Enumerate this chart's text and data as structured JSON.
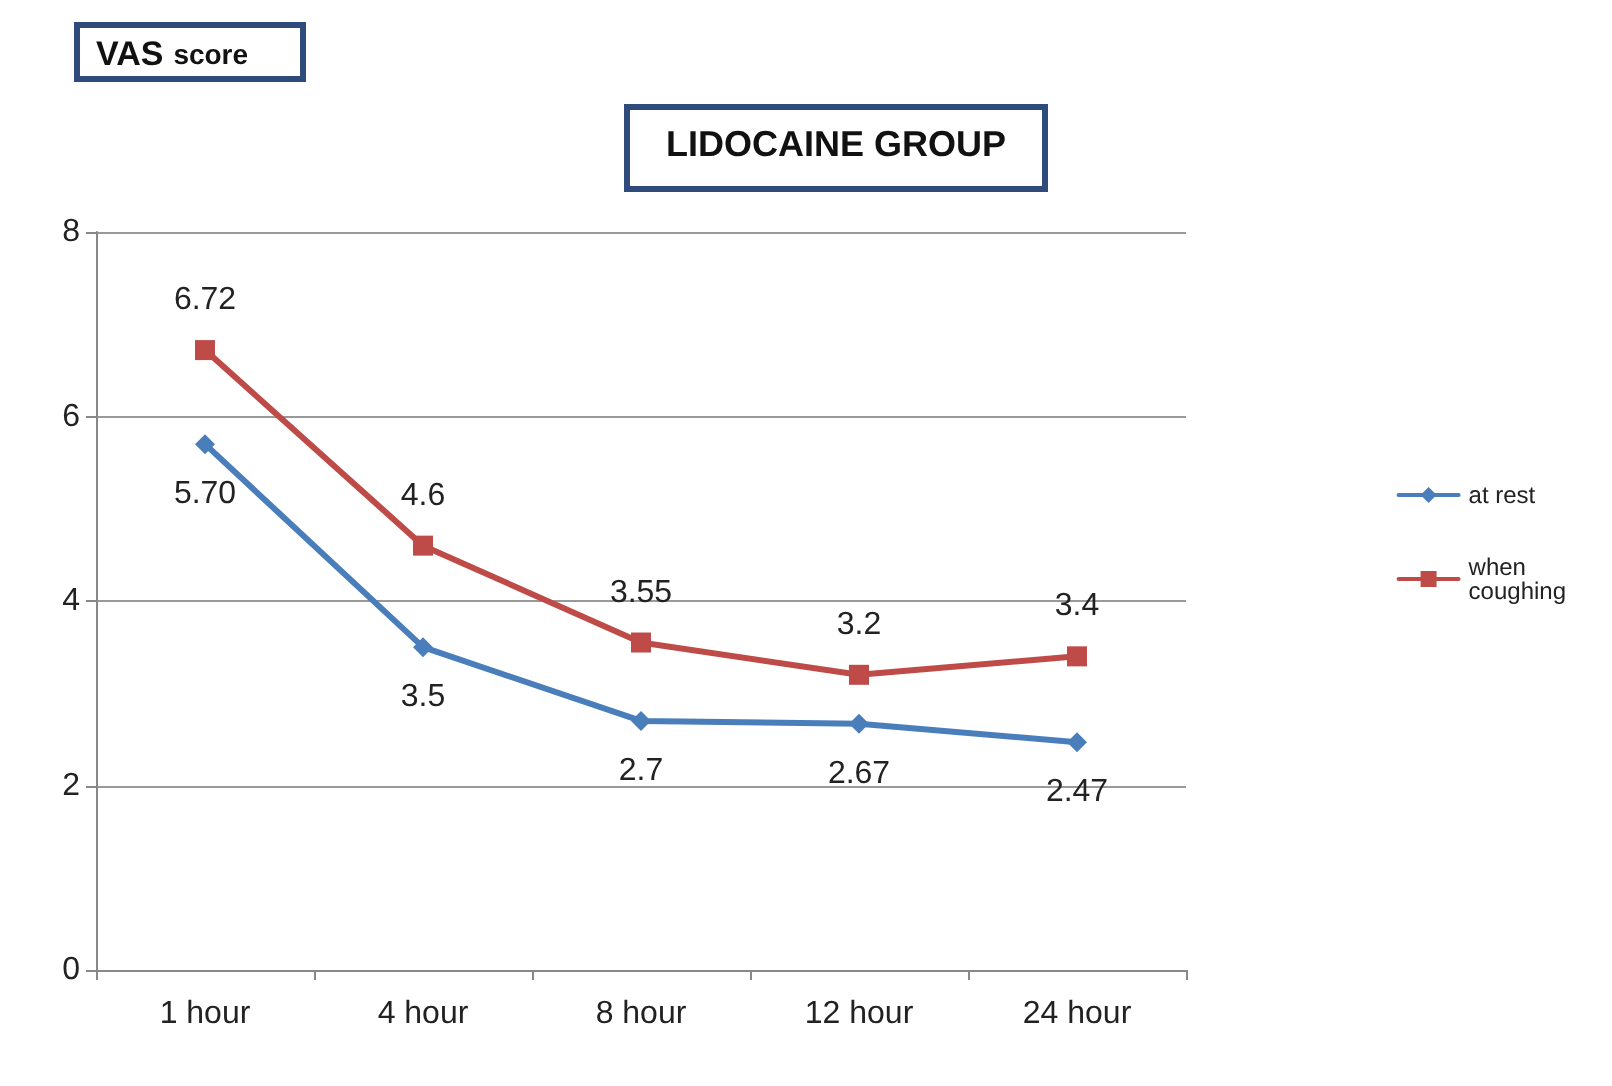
{
  "chart_data": {
    "type": "line",
    "title": "LIDOCAINE GROUP",
    "ylabel": "VAS score",
    "categories": [
      "1 hour",
      "4 hour",
      "8 hour",
      "12 hour",
      "24 hour"
    ],
    "series": [
      {
        "name": "at rest",
        "color": "#4a7ebb",
        "marker": "diamond",
        "values": [
          5.7,
          3.5,
          2.7,
          2.67,
          2.47
        ],
        "value_labels": [
          "5.70",
          "3.5",
          "2.7",
          "2.67",
          "2.47"
        ]
      },
      {
        "name": "when coughing",
        "color": "#be4b48",
        "marker": "square",
        "values": [
          6.72,
          4.6,
          3.55,
          3.2,
          3.4
        ],
        "value_labels": [
          "6.72",
          "4.6",
          "3.55",
          "3.2",
          "3.4"
        ]
      }
    ],
    "ylim": [
      0,
      8
    ],
    "yticks": [
      0,
      2,
      4,
      6,
      8
    ],
    "grid": "y",
    "legend": "right"
  }
}
